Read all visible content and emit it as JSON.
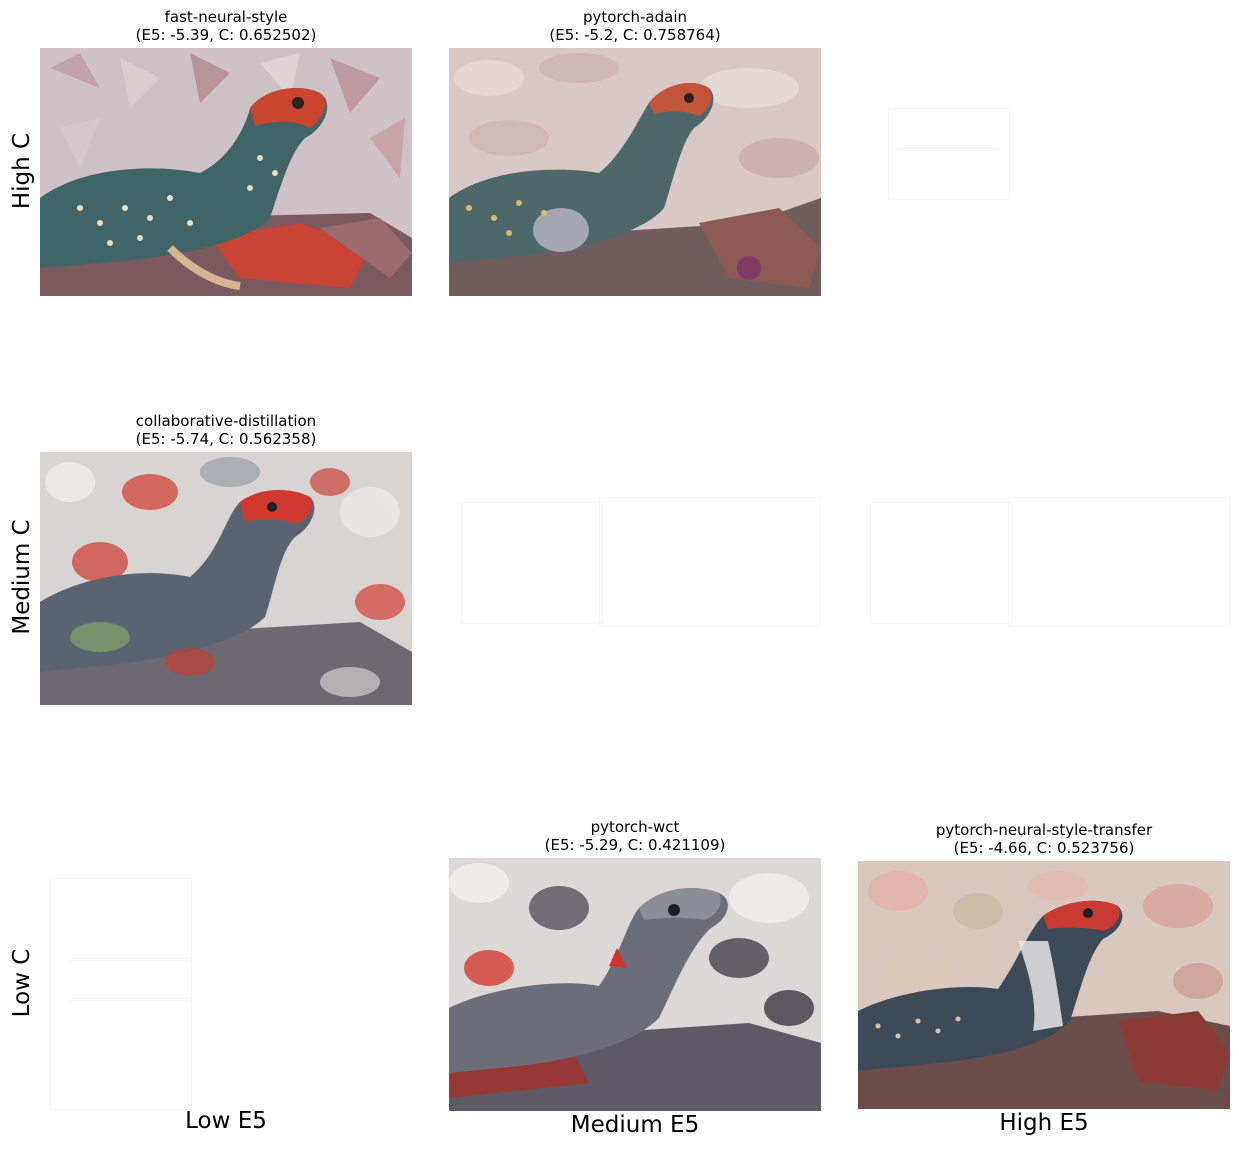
{
  "row_labels": [
    "High C",
    "Medium C",
    "Low C"
  ],
  "column_labels": [
    "Low E5",
    "Medium E5",
    "High E5"
  ],
  "cells": [
    {
      "method": "fast-neural-style",
      "scores": "(E5: -5.39, C: 0.652502)",
      "palette": {
        "bg": "#cfc2c6",
        "rock": "#7a5a5e",
        "accent": "#c9452f",
        "body": "#3f6566"
      }
    },
    {
      "method": "pytorch-adain",
      "scores": "(E5: -5.2, C: 0.758764)",
      "palette": {
        "bg": "#d9c9c6",
        "rock": "#6f5c5d",
        "accent": "#c25539",
        "body": "#4d6869"
      }
    },
    {
      "method": "collaborative-distillation",
      "scores": "(E5: -5.74, C: 0.562358)",
      "palette": {
        "bg": "#d8d4d2",
        "rock": "#6c6a70",
        "accent": "#d0392d",
        "body": "#5a6470"
      }
    },
    {
      "method": "pytorch-wct",
      "scores": "(E5: -5.29, C: 0.421109)",
      "palette": {
        "bg": "#dcd8d6",
        "rock": "#5d5a64",
        "accent": "#d2332b",
        "body": "#6b6e78"
      }
    },
    {
      "method": "pytorch-neural-style-transfer",
      "scores": "(E5: -4.66, C: 0.523756)",
      "palette": {
        "bg": "#d8c8c0",
        "rock": "#6a4d4a",
        "accent": "#c93a33",
        "body": "#3e4a56"
      }
    }
  ]
}
